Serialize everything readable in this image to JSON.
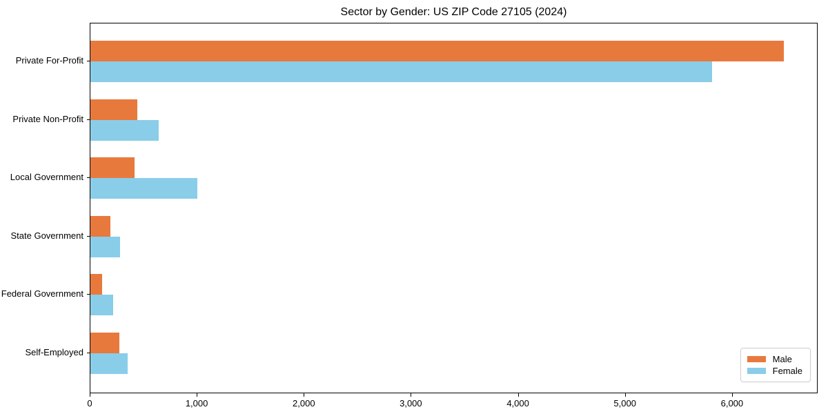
{
  "title": "Sector by Gender: US ZIP Code 27105 (2024)",
  "colors": {
    "male": "#e8793d",
    "female": "#89cde9",
    "spine": "#000000",
    "text": "#000000",
    "legend_border": "#cccccc",
    "background": "#ffffff"
  },
  "chart_data": {
    "type": "bar",
    "orientation": "horizontal",
    "title": "Sector by Gender: US ZIP Code 27105 (2024)",
    "categories": [
      "Private For-Profit",
      "Private Non-Profit",
      "Local Government",
      "State Government",
      "Federal Government",
      "Self-Employed"
    ],
    "series": [
      {
        "name": "Male",
        "color": "#e8793d",
        "values": [
          6480,
          440,
          410,
          185,
          110,
          270
        ]
      },
      {
        "name": "Female",
        "color": "#89cde9",
        "values": [
          5810,
          640,
          1000,
          275,
          215,
          350
        ]
      }
    ],
    "xlabel": "",
    "ylabel": "",
    "xlim": [
      0,
      6800
    ],
    "xticks": [
      0,
      1000,
      2000,
      3000,
      4000,
      5000,
      6000
    ],
    "xtick_labels": [
      "0",
      "1,000",
      "2,000",
      "3,000",
      "4,000",
      "5,000",
      "6,000"
    ],
    "grid": false,
    "legend_position": "lower right"
  },
  "legend": {
    "items": [
      {
        "label": "Male"
      },
      {
        "label": "Female"
      }
    ]
  }
}
